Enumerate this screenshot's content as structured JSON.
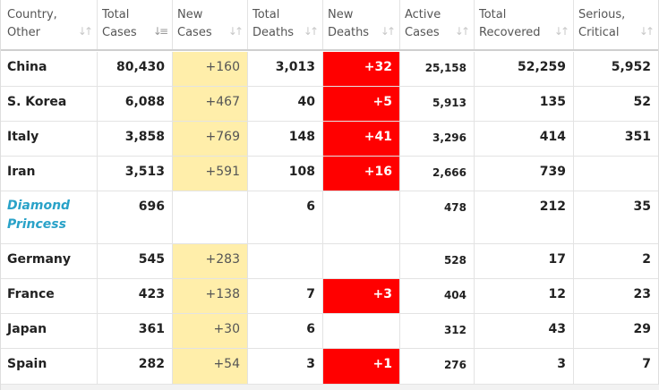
{
  "headers": [
    {
      "line1": "Country,",
      "line2": "Other"
    },
    {
      "line1": "Total",
      "line2": "Cases"
    },
    {
      "line1": "New",
      "line2": "Cases"
    },
    {
      "line1": "Total",
      "line2": "Deaths"
    },
    {
      "line1": "New",
      "line2": "Deaths"
    },
    {
      "line1": "Active",
      "line2": "Cases"
    },
    {
      "line1": "Total",
      "line2": "Recovered"
    },
    {
      "line1": "Serious,",
      "line2": "Critical"
    }
  ],
  "sort_icons": {
    "inactive": "sort-icon",
    "active": "sort-descending-icon",
    "active_column": "Total Cases"
  },
  "colors": {
    "new_cases_bg": "#ffeeaa",
    "new_deaths_bg": "#ff0000",
    "link_country": "#29a2c8"
  },
  "rows": [
    {
      "country": "China",
      "total_cases": "80,430",
      "new_cases": "+160",
      "total_deaths": "3,013",
      "new_deaths": "+32",
      "active_cases": "25,158",
      "total_recovered": "52,259",
      "serious_critical": "5,952"
    },
    {
      "country": "S. Korea",
      "total_cases": "6,088",
      "new_cases": "+467",
      "total_deaths": "40",
      "new_deaths": "+5",
      "active_cases": "5,913",
      "total_recovered": "135",
      "serious_critical": "52"
    },
    {
      "country": "Italy",
      "total_cases": "3,858",
      "new_cases": "+769",
      "total_deaths": "148",
      "new_deaths": "+41",
      "active_cases": "3,296",
      "total_recovered": "414",
      "serious_critical": "351"
    },
    {
      "country": "Iran",
      "total_cases": "3,513",
      "new_cases": "+591",
      "total_deaths": "108",
      "new_deaths": "+16",
      "active_cases": "2,666",
      "total_recovered": "739",
      "serious_critical": ""
    },
    {
      "country": "Diamond Princess",
      "total_cases": "696",
      "new_cases": "",
      "total_deaths": "6",
      "new_deaths": "",
      "active_cases": "478",
      "total_recovered": "212",
      "serious_critical": "35"
    },
    {
      "country": "Germany",
      "total_cases": "545",
      "new_cases": "+283",
      "total_deaths": "",
      "new_deaths": "",
      "active_cases": "528",
      "total_recovered": "17",
      "serious_critical": "2"
    },
    {
      "country": "France",
      "total_cases": "423",
      "new_cases": "+138",
      "total_deaths": "7",
      "new_deaths": "+3",
      "active_cases": "404",
      "total_recovered": "12",
      "serious_critical": "23"
    },
    {
      "country": "Japan",
      "total_cases": "361",
      "new_cases": "+30",
      "total_deaths": "6",
      "new_deaths": "",
      "active_cases": "312",
      "total_recovered": "43",
      "serious_critical": "29"
    },
    {
      "country": "Spain",
      "total_cases": "282",
      "new_cases": "+54",
      "total_deaths": "3",
      "new_deaths": "+1",
      "active_cases": "276",
      "total_recovered": "3",
      "serious_critical": "7"
    }
  ]
}
